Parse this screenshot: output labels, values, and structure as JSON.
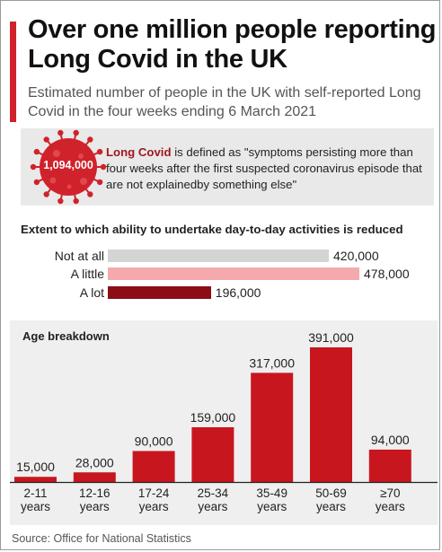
{
  "title": "Over one million people reporting Long Covid in the UK",
  "subtitle": "Estimated number of people in the UK with self-reported Long Covid in the four weeks ending 6 March 2021",
  "definition": {
    "total_badge": "1,094,000",
    "term": "Long Covid",
    "text": " is defined as \"symptoms persisting more than four weeks after the first suspected coronavirus episode that are not explainedby something else\"",
    "icon": "virus-icon",
    "icon_color": "#d0222b"
  },
  "source": "Source: Office for National Statistics",
  "colors": {
    "accent": "#d0222b",
    "bar_dark": "#8b0d15",
    "bar_pink": "#f4aaad",
    "bar_grey": "#d4d4d4",
    "panel_bg": "#efefef"
  },
  "chart_data": [
    {
      "type": "bar",
      "orientation": "horizontal",
      "title": "Extent to which ability to undertake day-to-day activities is reduced",
      "categories": [
        "Not at all",
        "A little",
        "A lot"
      ],
      "values": [
        420000,
        478000,
        196000
      ],
      "value_labels": [
        "420,000",
        "478,000",
        "196,000"
      ],
      "colors": [
        "#d4d4d4",
        "#f4aaad",
        "#8b0d15"
      ]
    },
    {
      "type": "bar",
      "title": "Age breakdown",
      "categories": [
        "2-11 years",
        "12-16 years",
        "17-24 years",
        "25-34 years",
        "35-49 years",
        "50-69 years",
        "≥70 years"
      ],
      "category_lines": [
        [
          "2-11",
          "years"
        ],
        [
          "12-16",
          "years"
        ],
        [
          "17-24",
          "years"
        ],
        [
          "25-34",
          "years"
        ],
        [
          "35-49",
          "years"
        ],
        [
          "50-69",
          "years"
        ],
        [
          "≥70",
          "years"
        ]
      ],
      "values": [
        15000,
        28000,
        90000,
        159000,
        317000,
        391000,
        94000
      ],
      "value_labels": [
        "15,000",
        "28,000",
        "90,000",
        "159,000",
        "317,000",
        "391,000",
        "94,000"
      ],
      "color": "#c8161e",
      "ylim": [
        0,
        391000
      ],
      "grid": false,
      "legend": "none"
    }
  ]
}
